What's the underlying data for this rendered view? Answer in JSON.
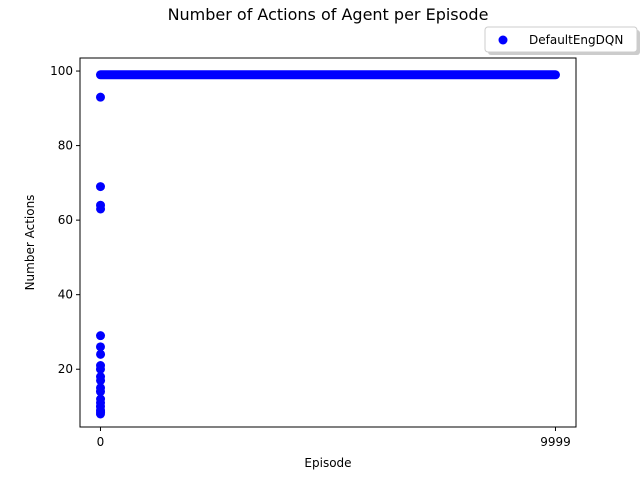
{
  "chart_data": {
    "type": "scatter",
    "title": "Number of Actions of Agent per Episode",
    "xlabel": "Episode",
    "ylabel": "Number Actions",
    "x_ticks": [
      "0",
      "9999"
    ],
    "y_ticks": [
      20,
      40,
      60,
      80,
      100
    ],
    "xlim": [
      -450,
      10450
    ],
    "ylim": [
      4.5,
      103.5
    ],
    "grid": false,
    "legend_placement": "top-right (outside axes)",
    "series": [
      {
        "name": "DefaultEngDQN",
        "color": "#0000ff",
        "early_points": [
          {
            "x": 0,
            "y": 93
          },
          {
            "x": 0,
            "y": 69
          },
          {
            "x": 1,
            "y": 64
          },
          {
            "x": 2,
            "y": 63
          },
          {
            "x": 1,
            "y": 29
          },
          {
            "x": 0,
            "y": 26
          },
          {
            "x": 2,
            "y": 24
          },
          {
            "x": 1,
            "y": 21
          },
          {
            "x": 0,
            "y": 20
          },
          {
            "x": 1,
            "y": 18
          },
          {
            "x": 2,
            "y": 17
          },
          {
            "x": 1,
            "y": 15
          },
          {
            "x": 0,
            "y": 14
          },
          {
            "x": 2,
            "y": 12
          },
          {
            "x": 1,
            "y": 11
          },
          {
            "x": 0,
            "y": 10
          },
          {
            "x": 1,
            "y": 9
          },
          {
            "x": 2,
            "y": 8.5
          },
          {
            "x": 0,
            "y": 8
          }
        ],
        "plateau": {
          "x_start": 0,
          "x_end": 9999,
          "y": 99
        }
      }
    ]
  }
}
